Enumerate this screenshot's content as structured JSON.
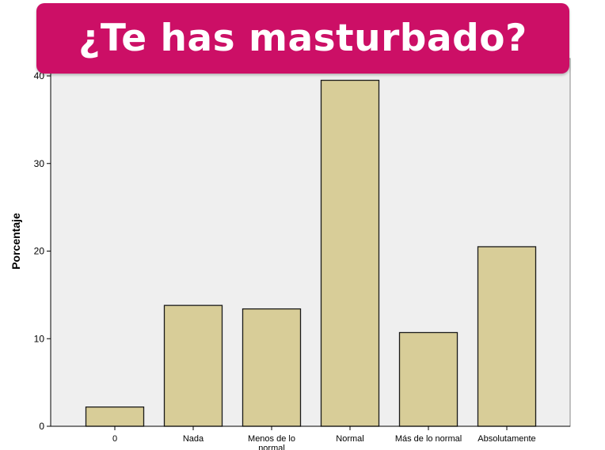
{
  "chart_title": "¿Te has masturbado?",
  "colors": {
    "banner": "#cc0f66",
    "plot_background": "#efefef",
    "bar_fill": "#d8cd98",
    "bar_stroke": "#1a1a1a"
  },
  "chart_data": {
    "type": "bar",
    "title": "¿Te has masturbado?",
    "ylabel": "Porcentaje",
    "xlabel": "",
    "categories": [
      "0",
      "Nada",
      "Menos de lo normal",
      "Normal",
      "Más de lo normal",
      "Absolutamente"
    ],
    "values": [
      2.2,
      13.8,
      13.4,
      39.5,
      10.7,
      20.5
    ],
    "ylim": [
      0,
      40
    ],
    "yticks": [
      "0",
      "10",
      "20",
      "30",
      "40"
    ],
    "grid": false,
    "legend": "none"
  }
}
